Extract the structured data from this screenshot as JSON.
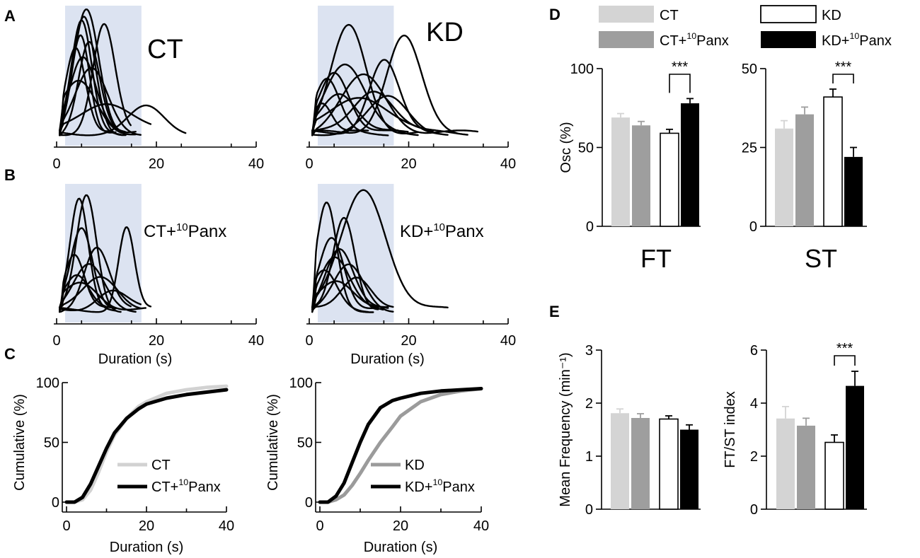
{
  "colors": {
    "CT": "#d4d4d4",
    "CT+10Panx": "#9e9e9e",
    "KD": "#ffffff",
    "KD+10Panx": "#000000",
    "shade": "#dce3f1",
    "cum_CT": "#d2d2d2",
    "cum_CT10Panx": "#000000",
    "cum_KD": "#9b9b9b",
    "cum_KD10Panx": "#000000"
  },
  "chart_data": [
    {
      "panel": "A",
      "type": "line",
      "condition_label": "CT",
      "xlabel": "",
      "xlim": [
        0,
        40
      ],
      "xticks": [
        0,
        20,
        40
      ],
      "shaded_window": [
        0,
        17
      ],
      "note": "individual normalized traces (amplitude 0-1)",
      "series": [
        {
          "peak": 5,
          "width": 2.0,
          "amp": 0.88,
          "end": 13
        },
        {
          "peak": 5.5,
          "width": 2.2,
          "amp": 0.92,
          "end": 14
        },
        {
          "peak": 6,
          "width": 2.5,
          "amp": 1.0,
          "end": 16
        },
        {
          "peak": 4.8,
          "width": 1.8,
          "amp": 0.8,
          "end": 12
        },
        {
          "peak": 9.5,
          "width": 2.2,
          "amp": 0.86,
          "end": 15
        },
        {
          "peak": 5.2,
          "width": 2.6,
          "amp": 0.6,
          "end": 14
        },
        {
          "peak": 7,
          "width": 3.2,
          "amp": 0.5,
          "end": 17
        },
        {
          "peak": 4.5,
          "width": 3.5,
          "amp": 0.4,
          "end": 16
        },
        {
          "peak": 10,
          "width": 5,
          "amp": 0.25,
          "end": 19
        },
        {
          "peak": 18,
          "width": 3.5,
          "amp": 0.2,
          "end": 26
        },
        {
          "peak": 3.8,
          "width": 2.0,
          "amp": 0.7,
          "end": 11
        },
        {
          "peak": 6.5,
          "width": 2.1,
          "amp": 0.72,
          "end": 12
        }
      ]
    },
    {
      "panel": "A",
      "type": "line",
      "condition_label": "KD",
      "xlabel": "",
      "xlim": [
        0,
        40
      ],
      "xticks": [
        0,
        20,
        40
      ],
      "shaded_window": [
        0,
        17
      ],
      "series": [
        {
          "peak": 8,
          "width": 3.5,
          "amp": 0.85,
          "end": 22
        },
        {
          "peak": 19,
          "width": 3.5,
          "amp": 0.77,
          "end": 30
        },
        {
          "peak": 15,
          "width": 3.0,
          "amp": 0.58,
          "end": 28
        },
        {
          "peak": 5,
          "width": 3.0,
          "amp": 0.5,
          "end": 20
        },
        {
          "peak": 7,
          "width": 4.0,
          "amp": 0.55,
          "end": 22
        },
        {
          "peak": 11,
          "width": 4.5,
          "amp": 0.45,
          "end": 34
        },
        {
          "peak": 3.5,
          "width": 2.5,
          "amp": 0.42,
          "end": 16
        },
        {
          "peak": 13,
          "width": 4.0,
          "amp": 0.35,
          "end": 32
        },
        {
          "peak": 10,
          "width": 5.5,
          "amp": 0.3,
          "end": 25
        },
        {
          "peak": 6,
          "width": 3.5,
          "amp": 0.33,
          "end": 18
        },
        {
          "peak": 16,
          "width": 4.0,
          "amp": 0.28,
          "end": 26
        },
        {
          "peak": 2.5,
          "width": 2.0,
          "amp": 0.25,
          "end": 12
        }
      ]
    },
    {
      "panel": "B",
      "type": "line",
      "condition_label": "CT+10Panx",
      "xlabel": "Duration (s)",
      "xlim": [
        0,
        40
      ],
      "xticks": [
        0,
        20,
        40
      ],
      "shaded_window": [
        0,
        17
      ],
      "series": [
        {
          "peak": 4.5,
          "width": 1.8,
          "amp": 0.88,
          "end": 12
        },
        {
          "peak": 6,
          "width": 2.0,
          "amp": 0.92,
          "end": 13
        },
        {
          "peak": 14,
          "width": 1.6,
          "amp": 0.67,
          "end": 19
        },
        {
          "peak": 5,
          "width": 2.2,
          "amp": 0.68,
          "end": 12
        },
        {
          "peak": 8,
          "width": 2.5,
          "amp": 0.5,
          "end": 15
        },
        {
          "peak": 3.5,
          "width": 2.0,
          "amp": 0.45,
          "end": 11
        },
        {
          "peak": 6.5,
          "width": 3.0,
          "amp": 0.35,
          "end": 16
        },
        {
          "peak": 9,
          "width": 3.5,
          "amp": 0.27,
          "end": 17
        },
        {
          "peak": 5,
          "width": 3.5,
          "amp": 0.22,
          "end": 18
        },
        {
          "peak": 11,
          "width": 3.0,
          "amp": 0.16,
          "end": 17
        },
        {
          "peak": 4,
          "width": 2.5,
          "amp": 0.3,
          "end": 10
        }
      ]
    },
    {
      "panel": "B",
      "type": "line",
      "condition_label": "KD+10Panx",
      "xlabel": "Duration (s)",
      "xlim": [
        0,
        40
      ],
      "xticks": [
        0,
        20,
        40
      ],
      "shaded_window": [
        0,
        17
      ],
      "series": [
        {
          "peak": 11,
          "width": 4.5,
          "amp": 0.97,
          "end": 28
        },
        {
          "peak": 3.5,
          "width": 2.0,
          "amp": 0.85,
          "end": 13
        },
        {
          "peak": 7,
          "width": 2.2,
          "amp": 0.76,
          "end": 14
        },
        {
          "peak": 4.5,
          "width": 2.5,
          "amp": 0.6,
          "end": 14
        },
        {
          "peak": 6,
          "width": 2.8,
          "amp": 0.5,
          "end": 16
        },
        {
          "peak": 5,
          "width": 3.0,
          "amp": 0.42,
          "end": 15
        },
        {
          "peak": 8,
          "width": 3.0,
          "amp": 0.35,
          "end": 17
        },
        {
          "peak": 3,
          "width": 2.5,
          "amp": 0.3,
          "end": 12
        },
        {
          "peak": 9.5,
          "width": 3.0,
          "amp": 0.28,
          "end": 17
        },
        {
          "peak": 5.5,
          "width": 3.5,
          "amp": 0.25,
          "end": 16
        }
      ]
    },
    {
      "panel": "C",
      "type": "line",
      "ylabel": "Cumulative (%)",
      "xlabel": "Duration (s)",
      "xlim": [
        0,
        40
      ],
      "ylim": [
        0,
        100
      ],
      "xticks": [
        0,
        20,
        40
      ],
      "yticks": [
        0,
        50,
        100
      ],
      "legend": "bottom-right",
      "series": [
        {
          "name": "CT",
          "x": [
            0,
            2,
            4,
            6,
            8,
            10,
            12,
            15,
            18,
            20,
            25,
            30,
            35,
            40
          ],
          "values": [
            0,
            0,
            2,
            10,
            25,
            42,
            56,
            70,
            80,
            84,
            91,
            94,
            96,
            97
          ]
        },
        {
          "name": "CT+10Panx",
          "x": [
            0,
            2,
            4,
            6,
            8,
            10,
            12,
            15,
            18,
            20,
            25,
            30,
            35,
            40
          ],
          "values": [
            0,
            0,
            4,
            15,
            30,
            45,
            58,
            70,
            78,
            82,
            87,
            90,
            92,
            94
          ]
        }
      ]
    },
    {
      "panel": "C",
      "type": "line",
      "ylabel": "Cumulative (%)",
      "xlabel": "Duration (s)",
      "xlim": [
        0,
        40
      ],
      "ylim": [
        0,
        100
      ],
      "xticks": [
        0,
        20,
        40
      ],
      "yticks": [
        0,
        50,
        100
      ],
      "legend": "bottom-right",
      "series": [
        {
          "name": "KD",
          "x": [
            0,
            2,
            4,
            6,
            8,
            10,
            12,
            15,
            18,
            20,
            25,
            30,
            35,
            40
          ],
          "values": [
            0,
            0,
            2,
            6,
            14,
            24,
            35,
            50,
            63,
            72,
            84,
            90,
            93,
            95
          ]
        },
        {
          "name": "KD+10Panx",
          "x": [
            0,
            2,
            4,
            6,
            8,
            10,
            12,
            15,
            18,
            20,
            25,
            30,
            35,
            40
          ],
          "values": [
            0,
            0,
            5,
            16,
            33,
            50,
            65,
            79,
            85,
            87,
            91,
            93,
            94,
            95
          ]
        }
      ]
    },
    {
      "panel": "D",
      "type": "bar",
      "group_label": "FT",
      "ylabel": "Osc (%)",
      "ylim": [
        0,
        100
      ],
      "yticks": [
        0,
        50,
        100
      ],
      "categories": [
        "CT",
        "CT+10Panx",
        "KD",
        "KD+10Panx"
      ],
      "values": [
        69,
        64,
        59,
        78
      ],
      "errors": [
        2.5,
        2.5,
        2.5,
        3
      ],
      "significance": [
        {
          "between": [
            2,
            3
          ],
          "label": "***"
        }
      ]
    },
    {
      "panel": "D",
      "type": "bar",
      "group_label": "ST",
      "ylabel": "",
      "ylim": [
        0,
        50
      ],
      "yticks": [
        0,
        25,
        50
      ],
      "categories": [
        "CT",
        "CT+10Panx",
        "KD",
        "KD+10Panx"
      ],
      "values": [
        31,
        35.5,
        41,
        22
      ],
      "errors": [
        2.5,
        2.3,
        2.5,
        3
      ],
      "significance": [
        {
          "between": [
            2,
            3
          ],
          "label": "***"
        }
      ]
    },
    {
      "panel": "E",
      "type": "bar",
      "ylabel": "Mean Frequency (min⁻¹)",
      "ylim": [
        0,
        3
      ],
      "yticks": [
        0,
        1,
        2,
        3
      ],
      "categories": [
        "CT",
        "CT+10Panx",
        "KD",
        "KD+10Panx"
      ],
      "values": [
        1.81,
        1.72,
        1.7,
        1.5
      ],
      "errors": [
        0.08,
        0.08,
        0.06,
        0.09
      ]
    },
    {
      "panel": "E",
      "type": "bar",
      "ylabel": "FT/ST index",
      "ylim": [
        0,
        6
      ],
      "yticks": [
        0,
        2,
        4,
        6
      ],
      "categories": [
        "CT",
        "CT+10Panx",
        "KD",
        "KD+10Panx"
      ],
      "values": [
        3.42,
        3.15,
        2.52,
        4.65
      ],
      "errors": [
        0.45,
        0.28,
        0.28,
        0.55
      ],
      "significance": [
        {
          "between": [
            2,
            3
          ],
          "label": "***"
        }
      ]
    }
  ],
  "legend_d": [
    {
      "label": "CT",
      "key": "CT"
    },
    {
      "label": "CT+10Panx",
      "key": "CT+10Panx"
    },
    {
      "label": "KD",
      "key": "KD"
    },
    {
      "label": "KD+10Panx",
      "key": "KD+10Panx"
    }
  ],
  "panel_letters": [
    "A",
    "B",
    "C",
    "D",
    "E"
  ]
}
